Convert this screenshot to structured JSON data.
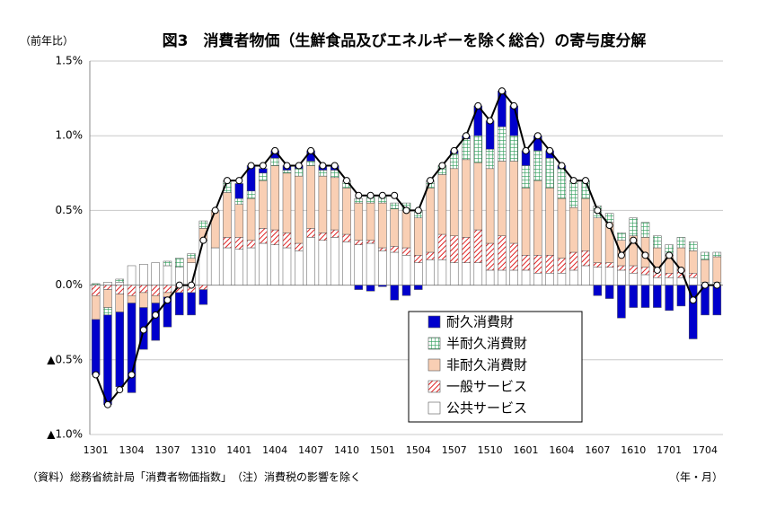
{
  "chart_data": {
    "type": "bar",
    "stacked": true,
    "title": "図3　消費者物価（生鮮食品及びエネルギーを除く総合）の寄与度分解",
    "y_unit": "（前年比）",
    "x_unit": "（年・月）",
    "source": "（資料）総務省統計局「消費者物価指数」　（注）消費税の影響を除く",
    "categories": [
      "1301",
      null,
      null,
      "1304",
      null,
      null,
      "1307",
      null,
      null,
      "1310",
      null,
      null,
      "1401",
      null,
      null,
      "1404",
      null,
      null,
      "1407",
      null,
      null,
      "1410",
      null,
      null,
      "1501",
      null,
      null,
      "1504",
      null,
      null,
      "1507",
      null,
      null,
      "1510",
      null,
      null,
      "1601",
      null,
      null,
      "1604",
      null,
      null,
      "1607",
      null,
      null,
      "1610",
      null,
      null,
      "1701",
      null,
      null,
      "1704",
      null
    ],
    "ylim": [
      -1.0,
      1.5
    ],
    "yticks": [
      {
        "value": 1.5,
        "label": "1.5%"
      },
      {
        "value": 1.0,
        "label": "1.0%"
      },
      {
        "value": 0.5,
        "label": "0.5%"
      },
      {
        "value": 0.0,
        "label": "0.0%"
      },
      {
        "value": -0.5,
        "label": "▲0.5%"
      },
      {
        "value": -1.0,
        "label": "▲1.0%"
      }
    ],
    "grid": true,
    "legend": "bottom-center",
    "series": [
      {
        "name": "耐久消費財",
        "color": "#0000cc",
        "pattern": "solid",
        "values": [
          -0.37,
          -0.6,
          -0.5,
          -0.6,
          -0.28,
          -0.25,
          -0.2,
          -0.15,
          -0.15,
          -0.1,
          0.0,
          0.0,
          0.1,
          0.17,
          0.03,
          0.05,
          0.03,
          0.02,
          0.07,
          0.03,
          0.03,
          0.0,
          -0.03,
          -0.04,
          -0.01,
          -0.1,
          -0.07,
          -0.03,
          0.0,
          0.0,
          0.02,
          0.02,
          0.2,
          0.19,
          0.24,
          0.2,
          0.1,
          0.1,
          0.05,
          0.02,
          0.0,
          0.0,
          -0.07,
          -0.09,
          -0.22,
          -0.15,
          -0.15,
          -0.15,
          -0.17,
          -0.14,
          -0.36,
          -0.2,
          -0.2
        ]
      },
      {
        "name": "半耐久消費財",
        "color": "#2e9e5a",
        "pattern": "grid",
        "values": [
          0.01,
          -0.05,
          0.02,
          0.0,
          0.0,
          0.0,
          0.03,
          0.06,
          0.03,
          0.05,
          0.0,
          0.08,
          0.04,
          0.05,
          0.05,
          0.05,
          0.02,
          0.05,
          0.03,
          0.04,
          0.05,
          0.05,
          0.03,
          0.04,
          0.05,
          0.04,
          0.05,
          0.05,
          0.05,
          0.06,
          0.1,
          0.14,
          0.18,
          0.13,
          0.23,
          0.17,
          0.15,
          0.2,
          0.2,
          0.2,
          0.18,
          0.12,
          0.08,
          0.06,
          0.05,
          0.12,
          0.1,
          0.08,
          0.07,
          0.07,
          0.06,
          0.05,
          0.03
        ]
      },
      {
        "name": "非耐久消費財",
        "color": "#f9cfb4",
        "pattern": "solid",
        "values": [
          -0.16,
          -0.12,
          -0.12,
          -0.05,
          -0.1,
          -0.05,
          -0.03,
          0.0,
          0.03,
          0.08,
          0.25,
          0.3,
          0.22,
          0.28,
          0.32,
          0.43,
          0.4,
          0.45,
          0.42,
          0.38,
          0.35,
          0.31,
          0.25,
          0.25,
          0.3,
          0.25,
          0.25,
          0.25,
          0.43,
          0.4,
          0.45,
          0.52,
          0.45,
          0.5,
          0.5,
          0.55,
          0.45,
          0.5,
          0.45,
          0.4,
          0.3,
          0.35,
          0.3,
          0.27,
          0.17,
          0.2,
          0.2,
          0.15,
          0.12,
          0.15,
          0.15,
          0.15,
          0.17
        ]
      },
      {
        "name": "一般サービス",
        "color": "#e02020",
        "pattern": "hatch",
        "values": [
          -0.07,
          -0.03,
          -0.06,
          -0.07,
          -0.05,
          -0.07,
          -0.05,
          -0.05,
          -0.05,
          -0.03,
          0.0,
          0.07,
          0.08,
          0.05,
          0.1,
          0.1,
          0.1,
          0.05,
          0.06,
          0.05,
          0.05,
          0.05,
          0.03,
          0.02,
          0.02,
          0.04,
          0.05,
          0.05,
          0.05,
          0.17,
          0.18,
          0.17,
          0.22,
          0.18,
          0.23,
          0.18,
          0.1,
          0.12,
          0.12,
          0.1,
          0.12,
          0.1,
          0.03,
          0.03,
          0.03,
          0.05,
          0.05,
          0.05,
          0.03,
          0.05,
          0.03,
          0.0,
          0.0
        ]
      },
      {
        "name": "公共サービス",
        "color": "#ffffff",
        "pattern": "solid",
        "values": [
          0.0,
          0.02,
          0.02,
          0.13,
          0.14,
          0.15,
          0.13,
          0.12,
          0.15,
          0.3,
          0.25,
          0.25,
          0.24,
          0.25,
          0.28,
          0.27,
          0.25,
          0.23,
          0.32,
          0.3,
          0.32,
          0.29,
          0.27,
          0.28,
          0.23,
          0.22,
          0.2,
          0.15,
          0.17,
          0.17,
          0.15,
          0.15,
          0.15,
          0.1,
          0.1,
          0.1,
          0.1,
          0.08,
          0.08,
          0.08,
          0.1,
          0.13,
          0.12,
          0.12,
          0.1,
          0.08,
          0.07,
          0.05,
          0.05,
          0.05,
          0.05,
          0.02,
          0.02
        ]
      }
    ],
    "line": {
      "type": "line",
      "color": "#000000",
      "values": [
        -0.6,
        -0.8,
        -0.7,
        -0.6,
        -0.3,
        -0.2,
        -0.1,
        0.0,
        0.0,
        0.3,
        0.5,
        0.7,
        0.7,
        0.8,
        0.8,
        0.9,
        0.8,
        0.8,
        0.9,
        0.8,
        0.8,
        0.7,
        0.6,
        0.6,
        0.6,
        0.6,
        0.5,
        0.5,
        0.7,
        0.8,
        0.9,
        1.0,
        1.2,
        1.1,
        1.3,
        1.2,
        0.9,
        1.0,
        0.9,
        0.8,
        0.7,
        0.7,
        0.5,
        0.4,
        0.2,
        0.3,
        0.2,
        0.1,
        0.2,
        0.1,
        -0.1,
        0.0,
        0.0
      ]
    }
  }
}
